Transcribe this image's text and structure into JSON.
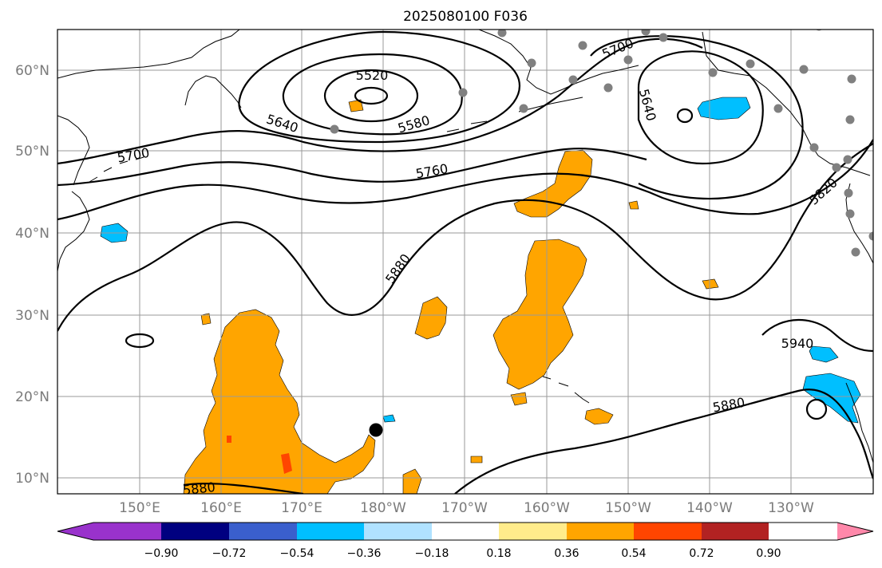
{
  "title": "2025080100 F036",
  "lat_labels": [
    "60°N",
    "50°N",
    "40°N",
    "30°N",
    "20°N",
    "10°N"
  ],
  "lon_labels": [
    "150°E",
    "160°E",
    "170°E",
    "180°W",
    "170°W",
    "160°W",
    "150°W",
    "140°W",
    "130°W"
  ],
  "contour_labels": [
    "5520",
    "5580",
    "5640",
    "5700",
    "5760",
    "5820",
    "5880",
    "5880",
    "5880",
    "5940",
    "5700",
    "5640"
  ],
  "colorbar": {
    "ticks": [
      "−0.90",
      "−0.72",
      "−0.54",
      "−0.36",
      "−0.18",
      "0.18",
      "0.36",
      "0.54",
      "0.72",
      "0.90"
    ],
    "colors": [
      "#9932cc",
      "#000080",
      "#3a5fcd",
      "#00bfff",
      "#b0e2ff",
      "#ffffff",
      "#ffec8b",
      "#ffa500",
      "#ff4500",
      "#b22222",
      "#ff88aa"
    ]
  },
  "colors": {
    "positive_field": "#ffa500",
    "negative_field": "#00bfff",
    "strong_positive": "#ff4500",
    "station_marker": "#808080"
  }
}
